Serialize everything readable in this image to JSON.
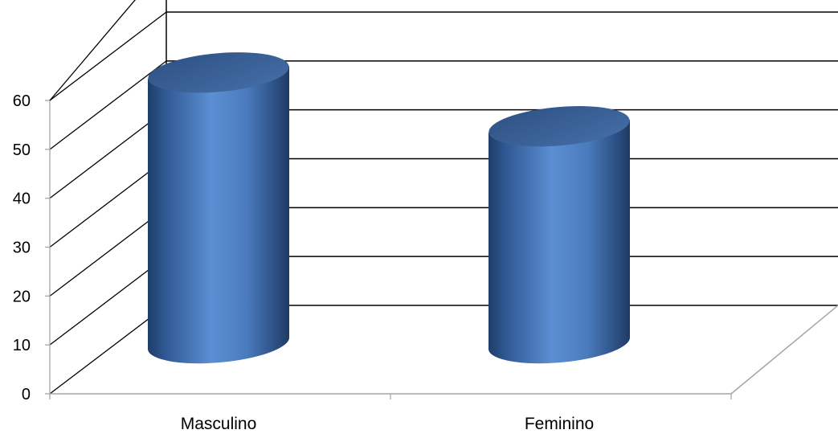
{
  "chart_data": {
    "type": "bar",
    "style": "3d-cylinder",
    "categories": [
      "Masculino",
      "Feminino"
    ],
    "values": [
      57,
      46
    ],
    "ylim": [
      0,
      60
    ],
    "yticks": [
      0,
      10,
      20,
      30,
      40,
      50,
      60
    ],
    "title": "",
    "xlabel": "",
    "ylabel": "",
    "grid": true,
    "legend": "none",
    "colors": {
      "bar_main": "#4f81bd",
      "bar_light": "#5b8fd3",
      "bar_dark": "#1f3f6e",
      "top_cap": "#3a6393",
      "gridline": "#000000",
      "floor_line": "#a6a6a6"
    }
  }
}
